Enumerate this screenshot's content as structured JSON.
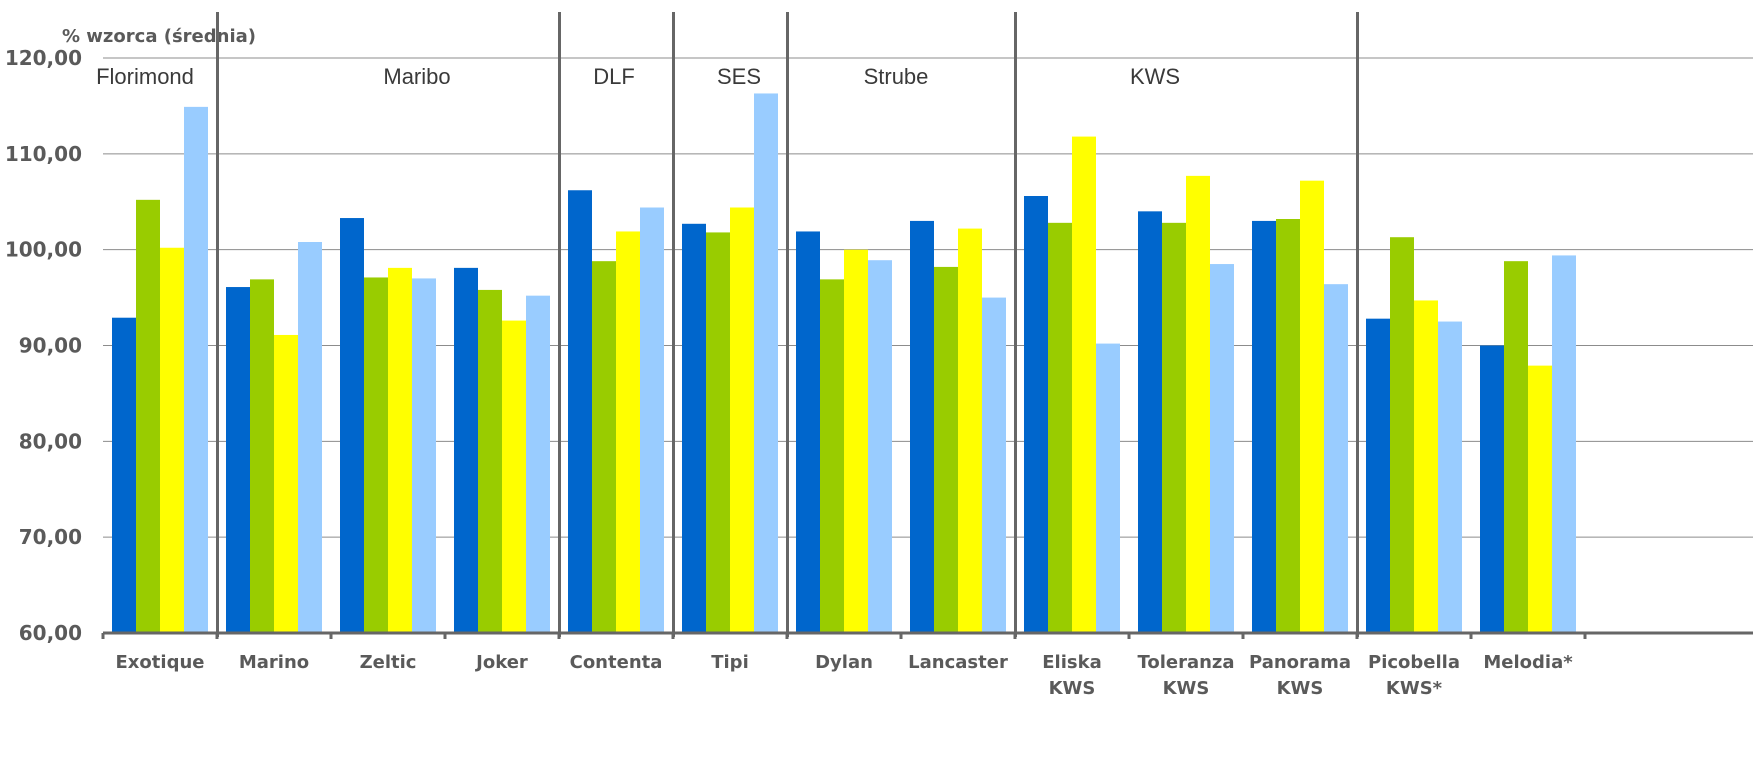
{
  "chart_data": {
    "type": "bar",
    "title": "",
    "ylabel": "% wzorca (średnia)",
    "xlabel": "",
    "ylim": [
      60,
      120
    ],
    "yticks": [
      "60,00",
      "70,00",
      "80,00",
      "90,00",
      "100,00",
      "110,00",
      "120,00"
    ],
    "grid": true,
    "legend": "none",
    "categories": [
      [
        "Exotique"
      ],
      [
        "Marino"
      ],
      [
        "Zeltic"
      ],
      [
        "Joker"
      ],
      [
        "Contenta"
      ],
      [
        "Tipi"
      ],
      [
        "Dylan"
      ],
      [
        "Lancaster"
      ],
      [
        "Eliska",
        "KWS"
      ],
      [
        "Toleranza",
        "KWS"
      ],
      [
        "Panorama",
        "KWS"
      ],
      [
        "Picobella",
        "KWS*"
      ],
      [
        "Melodia*"
      ]
    ],
    "groups": [
      {
        "label": "Florimond"
      },
      {
        "label": "Maribo"
      },
      {
        "label": "DLF"
      },
      {
        "label": "SES"
      },
      {
        "label": "Strube"
      },
      {
        "label": "KWS"
      },
      {
        "label": ""
      }
    ],
    "series": [
      {
        "color": "#0066cc",
        "values": [
          92.9,
          96.1,
          103.3,
          98.1,
          106.2,
          102.7,
          101.9,
          103.0,
          105.6,
          104.0,
          103.0,
          92.8,
          90.0
        ]
      },
      {
        "color": "#99cc00",
        "values": [
          105.2,
          96.9,
          97.1,
          95.8,
          98.8,
          101.8,
          96.9,
          98.2,
          102.8,
          102.8,
          103.2,
          101.3,
          98.8
        ]
      },
      {
        "color": "#ffff00",
        "values": [
          100.2,
          91.1,
          98.1,
          92.6,
          101.9,
          104.4,
          100.0,
          102.2,
          111.8,
          107.7,
          107.2,
          94.7,
          87.9
        ]
      },
      {
        "color": "#99ccff",
        "values": [
          114.9,
          100.8,
          97.0,
          95.2,
          104.4,
          116.3,
          98.9,
          95.0,
          90.2,
          98.5,
          96.4,
          92.5,
          99.4
        ]
      }
    ]
  }
}
